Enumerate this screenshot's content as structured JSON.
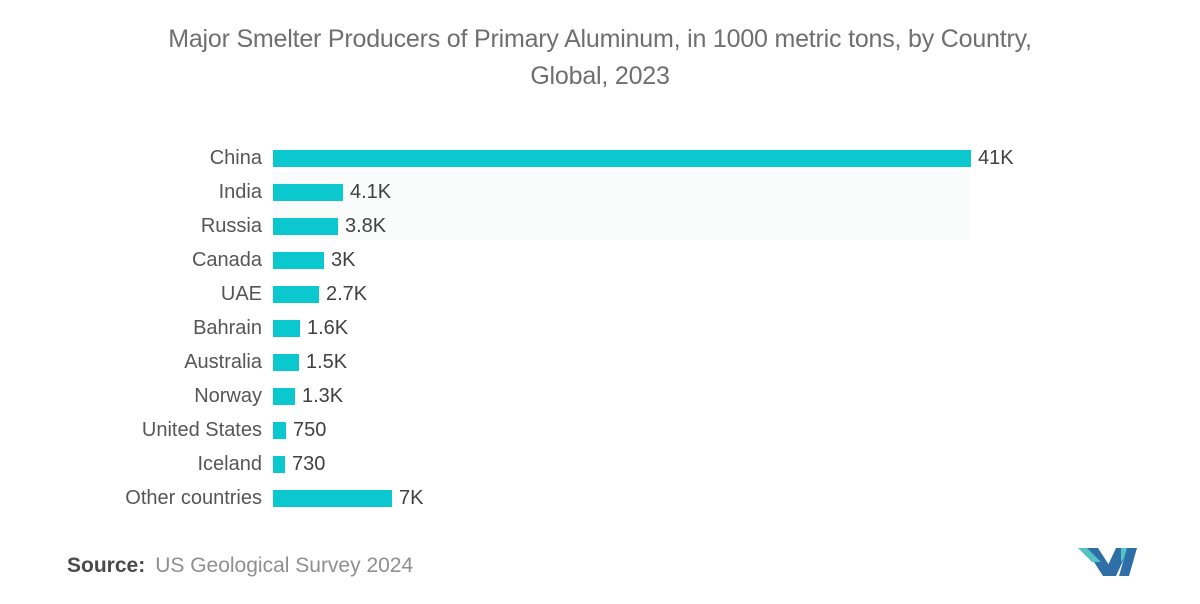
{
  "header": {
    "title_line1": "Major Smelter Producers of Primary Aluminum, in 1000 metric tons, by Country,",
    "title_line2": "Global, 2023"
  },
  "footer": {
    "source_label": "Source:",
    "source_text": "US Geological Survey 2024"
  },
  "logo": {
    "name": "mordor-intelligence-monogram",
    "teal": "#55C3C5",
    "blue": "#2E6FA8"
  },
  "chart_data": {
    "type": "bar",
    "orientation": "horizontal",
    "title": "Major Smelter Producers of Primary Aluminum, in 1000 metric tons, by Country, Global, 2023",
    "unit": "1000 metric tons",
    "categories": [
      "China",
      "India",
      "Russia",
      "Canada",
      "UAE",
      "Bahrain",
      "Australia",
      "Norway",
      "United States",
      "Iceland",
      "Other countries"
    ],
    "values": [
      41000,
      4100,
      3800,
      3000,
      2700,
      1600,
      1500,
      1300,
      750,
      730,
      7000
    ],
    "value_labels": [
      "41K",
      "4.1K",
      "3.8K",
      "3K",
      "2.7K",
      "1.6K",
      "1.5K",
      "1.3K",
      "750",
      "730",
      "7K"
    ],
    "xlabel": "",
    "ylabel": "",
    "xlim": [
      0,
      41000
    ],
    "grid": false,
    "legend": false,
    "bar_color": "#0AC8CD"
  }
}
